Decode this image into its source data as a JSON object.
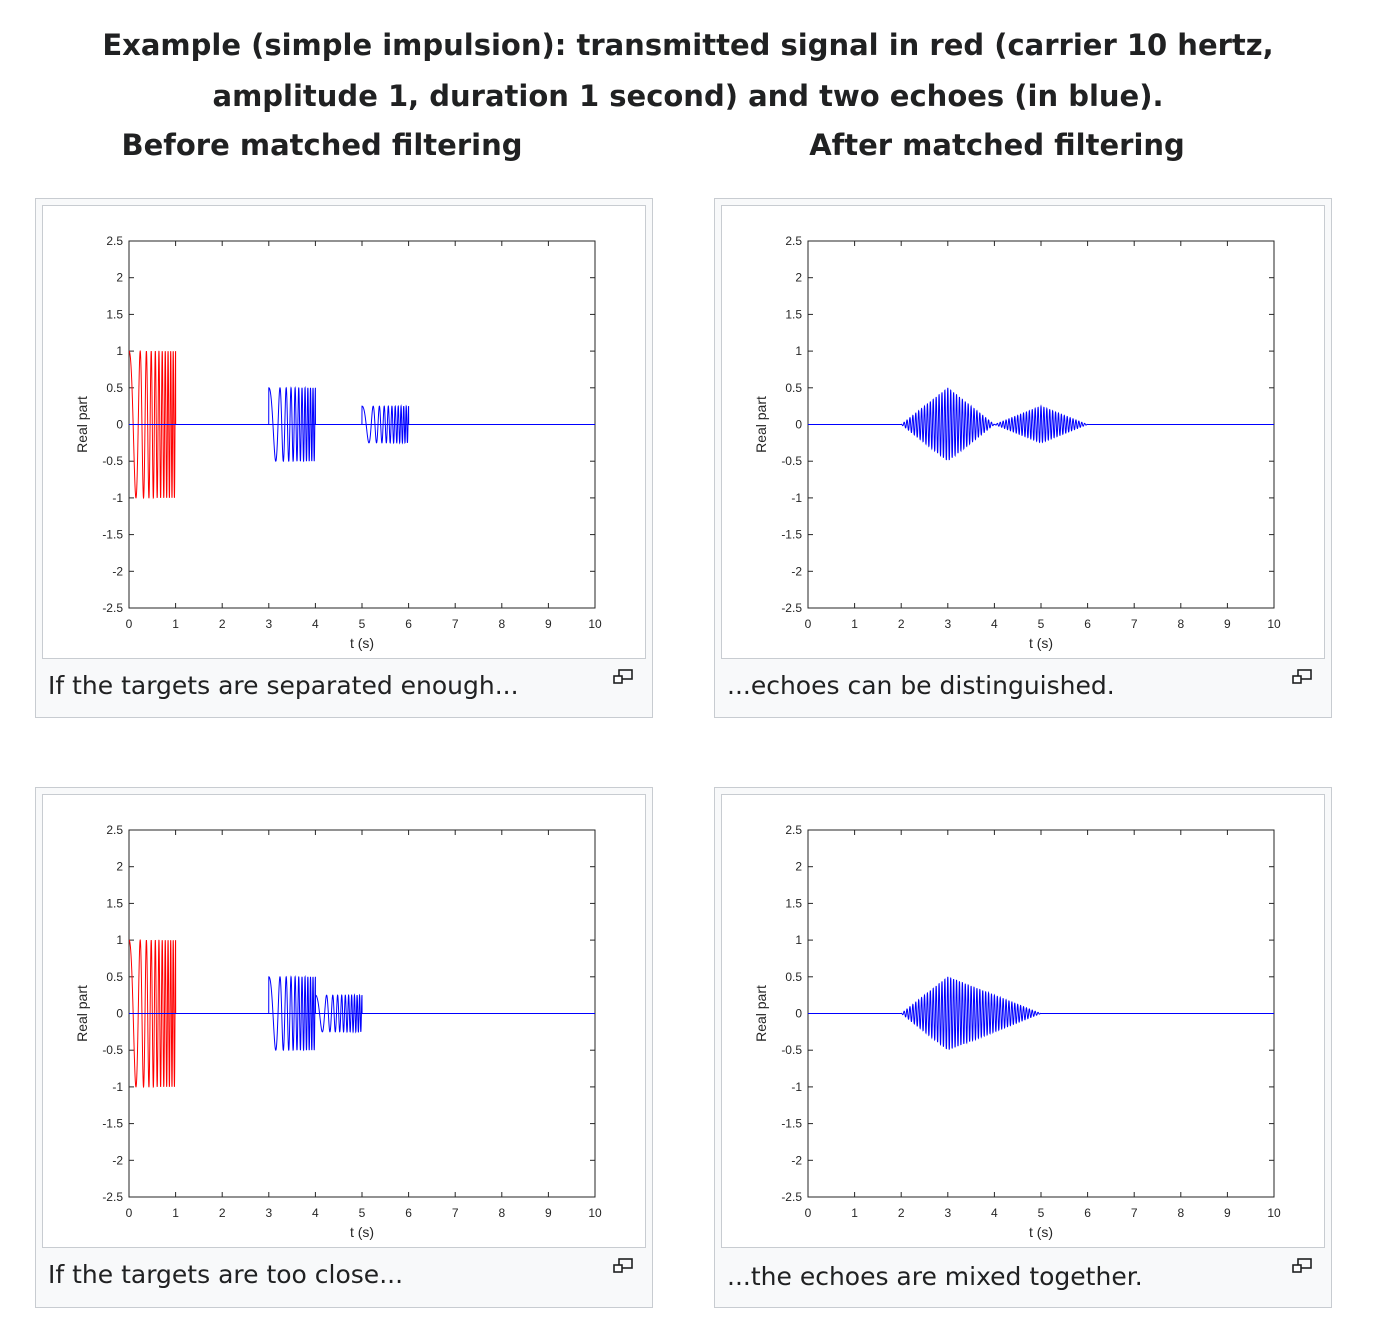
{
  "intro_text": "Example (simple impulsion): transmitted signal in red (carrier 10 hertz, amplitude 1, duration 1 second) and two echoes (in blue).",
  "columns": {
    "before": "Before matched filtering",
    "after": "After matched filtering"
  },
  "captions": [
    "If the targets are separated enough...",
    "...echoes can be distinguished.",
    "If the targets are too close...",
    "...the echoes are mixed together."
  ],
  "icons": {
    "magnify": "magnify-clip-icon"
  },
  "colors": {
    "transmitted": "#ff0000",
    "echo": "#0000ff"
  },
  "chart_data": [
    {
      "type": "line",
      "xlabel": "t (s)",
      "ylabel": "Real part",
      "xlim": [
        0,
        10
      ],
      "ylim": [
        -2.5,
        2.5
      ],
      "xticks": [
        0,
        1,
        2,
        3,
        4,
        5,
        6,
        7,
        8,
        9,
        10
      ],
      "yticks": [
        2.5,
        2,
        1.5,
        1,
        0.5,
        0,
        -0.5,
        -1,
        -1.5,
        -2,
        -2.5
      ],
      "grid": false,
      "series": [
        {
          "kind": "pulse",
          "color": "#ff0000",
          "start": 0,
          "end": 1,
          "amplitude": 1,
          "carrier_hz": 10
        },
        {
          "kind": "pulse",
          "color": "#0000ff",
          "start": 3,
          "end": 4,
          "amplitude": 0.5,
          "carrier_hz": 10
        },
        {
          "kind": "pulse",
          "color": "#0000ff",
          "start": 5,
          "end": 6,
          "amplitude": 0.25,
          "carrier_hz": 10
        }
      ]
    },
    {
      "type": "line",
      "xlabel": "t (s)",
      "ylabel": "Real part",
      "xlim": [
        0,
        10
      ],
      "ylim": [
        -2.5,
        2.5
      ],
      "xticks": [
        0,
        1,
        2,
        3,
        4,
        5,
        6,
        7,
        8,
        9,
        10
      ],
      "yticks": [
        2.5,
        2,
        1.5,
        1,
        0.5,
        0,
        -0.5,
        -1,
        -1.5,
        -2,
        -2.5
      ],
      "grid": false,
      "series": [
        {
          "kind": "matched",
          "color": "#0000ff",
          "peaks": [
            {
              "center": 3,
              "amplitude": 0.5
            },
            {
              "center": 5,
              "amplitude": 0.25
            }
          ],
          "halfwidth": 1,
          "carrier_hz": 10
        }
      ]
    },
    {
      "type": "line",
      "xlabel": "t (s)",
      "ylabel": "Real part",
      "xlim": [
        0,
        10
      ],
      "ylim": [
        -2.5,
        2.5
      ],
      "xticks": [
        0,
        1,
        2,
        3,
        4,
        5,
        6,
        7,
        8,
        9,
        10
      ],
      "yticks": [
        2.5,
        2,
        1.5,
        1,
        0.5,
        0,
        -0.5,
        -1,
        -1.5,
        -2,
        -2.5
      ],
      "grid": false,
      "series": [
        {
          "kind": "pulse",
          "color": "#ff0000",
          "start": 0,
          "end": 1,
          "amplitude": 1,
          "carrier_hz": 10
        },
        {
          "kind": "pulse",
          "color": "#0000ff",
          "start": 3,
          "end": 4,
          "amplitude": 0.5,
          "carrier_hz": 10
        },
        {
          "kind": "pulse",
          "color": "#0000ff",
          "start": 4,
          "end": 5,
          "amplitude": 0.25,
          "carrier_hz": 10
        }
      ]
    },
    {
      "type": "line",
      "xlabel": "t (s)",
      "ylabel": "Real part",
      "xlim": [
        0,
        10
      ],
      "ylim": [
        -2.5,
        2.5
      ],
      "xticks": [
        0,
        1,
        2,
        3,
        4,
        5,
        6,
        7,
        8,
        9,
        10
      ],
      "yticks": [
        2.5,
        2,
        1.5,
        1,
        0.5,
        0,
        -0.5,
        -1,
        -1.5,
        -2,
        -2.5
      ],
      "grid": false,
      "series": [
        {
          "kind": "matched",
          "color": "#0000ff",
          "peaks": [
            {
              "center": 3,
              "amplitude": 0.5
            },
            {
              "center": 4,
              "amplitude": 0.25
            }
          ],
          "halfwidth": 1,
          "carrier_hz": 10
        }
      ]
    }
  ]
}
